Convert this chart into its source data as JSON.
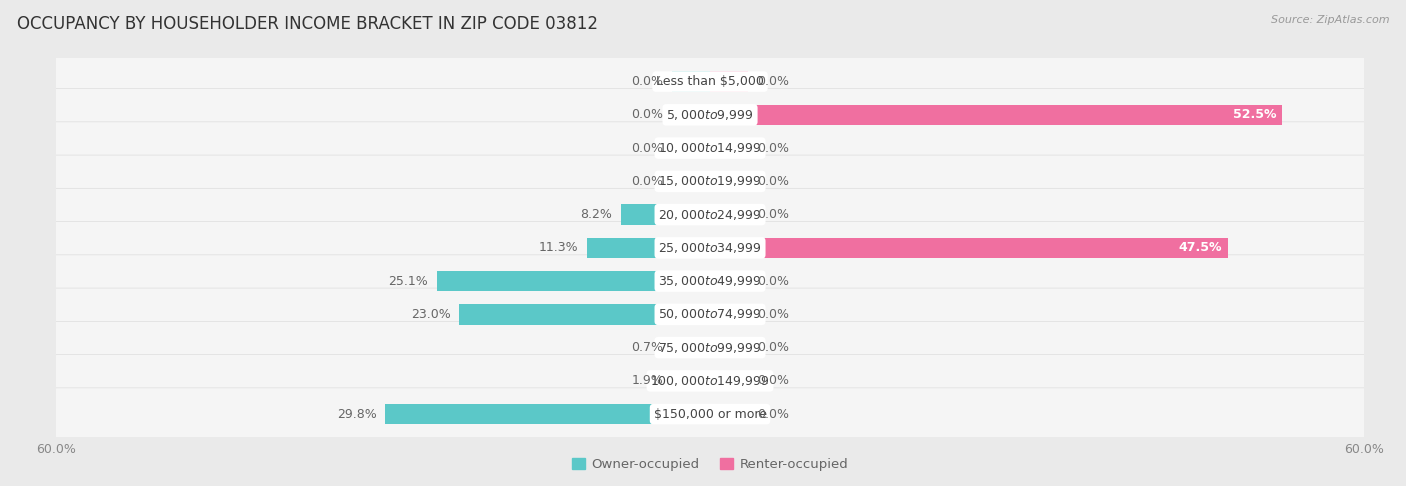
{
  "title": "OCCUPANCY BY HOUSEHOLDER INCOME BRACKET IN ZIP CODE 03812",
  "source": "Source: ZipAtlas.com",
  "categories": [
    "Less than $5,000",
    "$5,000 to $9,999",
    "$10,000 to $14,999",
    "$15,000 to $19,999",
    "$20,000 to $24,999",
    "$25,000 to $34,999",
    "$35,000 to $49,999",
    "$50,000 to $74,999",
    "$75,000 to $99,999",
    "$100,000 to $149,999",
    "$150,000 or more"
  ],
  "owner_values": [
    0.0,
    0.0,
    0.0,
    0.0,
    8.2,
    11.3,
    25.1,
    23.0,
    0.7,
    1.9,
    29.8
  ],
  "renter_values": [
    0.0,
    52.5,
    0.0,
    0.0,
    0.0,
    47.5,
    0.0,
    0.0,
    0.0,
    0.0,
    0.0
  ],
  "owner_color": "#5BC8C8",
  "owner_color_light": "#A8E0E0",
  "renter_color": "#F06FA0",
  "renter_color_light": "#F9B8CF",
  "axis_limit": 60.0,
  "background_color": "#eaeaea",
  "row_bg_color": "#f5f5f5",
  "row_border_color": "#dddddd",
  "bar_height": 0.62,
  "stub_size": 3.5,
  "label_fontsize": 9.0,
  "title_fontsize": 12,
  "legend_fontsize": 9.5,
  "axis_label_fontsize": 9
}
